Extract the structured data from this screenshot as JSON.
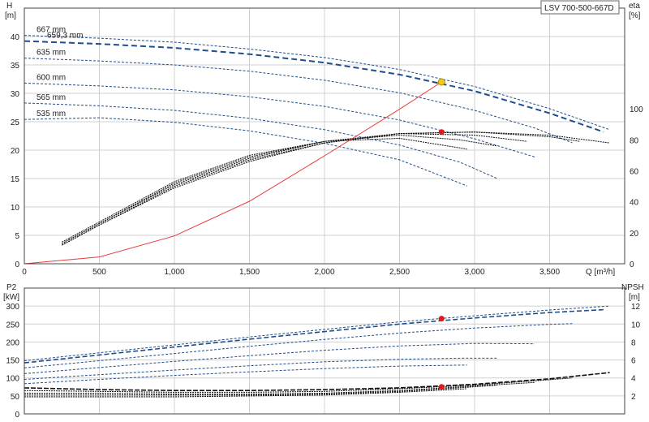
{
  "chart_data": [
    {
      "type": "line",
      "panel": "head-efficiency",
      "title": "LSV 700-500-667D",
      "xlabel": "Q [m³/h]",
      "ylabel_left": "H",
      "ylabel_left_unit": "[m]",
      "ylabel_right": "eta",
      "ylabel_right_unit": "[%]",
      "xlim": [
        0,
        4000
      ],
      "ylim_left": [
        0,
        45
      ],
      "ylim_right": [
        0,
        165
      ],
      "x_ticks": [
        0,
        500,
        1000,
        1500,
        2000,
        2500,
        3000,
        3500
      ],
      "x_tick_labels": [
        "0",
        "500",
        "1,000",
        "1,500",
        "2,000",
        "2,500",
        "3,000",
        "3,500"
      ],
      "y_left_ticks": [
        0,
        5,
        10,
        15,
        20,
        25,
        30,
        35,
        40
      ],
      "y_right_ticks": [
        0,
        20,
        40,
        60,
        80,
        100
      ],
      "grid": true,
      "head_curves": [
        {
          "name": "667 mm",
          "q": [
            0,
            500,
            1000,
            1500,
            2000,
            2500,
            3000,
            3500,
            3900
          ],
          "h": [
            40.2,
            39.7,
            39.0,
            37.8,
            36.3,
            34.2,
            31.2,
            27.3,
            23.6
          ]
        },
        {
          "name": "659,3 mm",
          "q": [
            0,
            500,
            1000,
            1500,
            2000,
            2500,
            3000,
            3500,
            3860
          ],
          "h": [
            39.2,
            38.7,
            38.0,
            36.9,
            35.4,
            33.3,
            30.4,
            26.5,
            23.2
          ]
        },
        {
          "name": "635 mm",
          "q": [
            0,
            500,
            1000,
            1500,
            2000,
            2500,
            3000,
            3400,
            3650
          ],
          "h": [
            36.2,
            35.7,
            35.0,
            33.9,
            32.3,
            30.1,
            27.0,
            23.9,
            21.3
          ]
        },
        {
          "name": "600 mm",
          "q": [
            0,
            500,
            1000,
            1500,
            2000,
            2500,
            3000,
            3400
          ],
          "h": [
            31.8,
            31.3,
            30.6,
            29.4,
            27.7,
            25.3,
            22.0,
            18.8
          ]
        },
        {
          "name": "565 mm",
          "q": [
            0,
            500,
            1000,
            1500,
            2000,
            2500,
            2900,
            3150
          ],
          "h": [
            28.3,
            27.8,
            27.0,
            25.6,
            23.6,
            20.9,
            17.9,
            15.0
          ]
        },
        {
          "name": "535 mm",
          "q": [
            0,
            500,
            1000,
            1500,
            2000,
            2500,
            2950
          ],
          "h": [
            25.4,
            25.7,
            24.9,
            23.4,
            21.2,
            18.3,
            13.7
          ]
        }
      ],
      "efficiency_curves": [
        {
          "name": "667 mm",
          "q": [
            250,
            500,
            1000,
            1500,
            2000,
            2500,
            3000,
            3500,
            3900
          ],
          "eta": [
            12,
            25,
            49,
            66,
            78,
            84,
            85,
            83,
            78
          ]
        },
        {
          "name": "635 mm",
          "q": [
            250,
            500,
            1000,
            1500,
            2000,
            2500,
            3000,
            3500,
            3700
          ],
          "eta": [
            12,
            25,
            50,
            67,
            78,
            84,
            85,
            82,
            79
          ]
        },
        {
          "name": "600 mm",
          "q": [
            250,
            500,
            1000,
            1500,
            2000,
            2500,
            3000,
            3350
          ],
          "eta": [
            13,
            26,
            51,
            68,
            79,
            84,
            83,
            79
          ]
        },
        {
          "name": "565 mm",
          "q": [
            250,
            500,
            1000,
            1500,
            2000,
            2500,
            2900,
            3150
          ],
          "eta": [
            13,
            26,
            52,
            69,
            79,
            83,
            80,
            76
          ]
        },
        {
          "name": "535 mm",
          "q": [
            250,
            500,
            1000,
            1500,
            2000,
            2500,
            2950
          ],
          "eta": [
            14,
            27,
            53,
            70,
            79,
            81,
            74
          ]
        }
      ],
      "system_curve": {
        "q": [
          0,
          500,
          1000,
          1500,
          2000,
          2500,
          2780
        ],
        "h": [
          0,
          1.2,
          4.9,
          11.0,
          19.0,
          27.2,
          32.0
        ]
      },
      "duty_point": {
        "q": 2780,
        "h": 32.0
      },
      "efficiency_point": {
        "q": 2780,
        "eta": 85
      }
    },
    {
      "type": "line",
      "panel": "power-npsh",
      "xlabel": "",
      "ylabel_left": "P2",
      "ylabel_left_unit": "[kW]",
      "ylabel_right": "NPSH",
      "ylabel_right_unit": "[m]",
      "xlim": [
        0,
        4000
      ],
      "ylim_left": [
        0,
        350
      ],
      "ylim_right": [
        0,
        14
      ],
      "y_left_ticks": [
        0,
        50,
        100,
        150,
        200,
        250,
        300
      ],
      "y_right_ticks": [
        2,
        4,
        6,
        8,
        10,
        12
      ],
      "grid": true,
      "power_curves": [
        {
          "name": "667 mm",
          "q": [
            0,
            500,
            1000,
            1500,
            2000,
            2500,
            3000,
            3500,
            3900
          ],
          "p": [
            148,
            170,
            192,
            214,
            235,
            256,
            273,
            289,
            300
          ]
        },
        {
          "name": "659,3 mm",
          "q": [
            0,
            500,
            1000,
            1500,
            2000,
            2500,
            3000,
            3500,
            3860
          ],
          "p": [
            142,
            164,
            186,
            208,
            229,
            250,
            267,
            282,
            290
          ]
        },
        {
          "name": "635 mm",
          "q": [
            0,
            500,
            1000,
            1500,
            2000,
            2500,
            3000,
            3500,
            3650
          ],
          "p": [
            128,
            148,
            168,
            188,
            207,
            225,
            239,
            249,
            251
          ]
        },
        {
          "name": "600 mm",
          "q": [
            0,
            500,
            1000,
            1500,
            2000,
            2500,
            3000,
            3400
          ],
          "p": [
            112,
            129,
            146,
            162,
            177,
            189,
            196,
            195
          ]
        },
        {
          "name": "565 mm",
          "q": [
            0,
            500,
            1000,
            1500,
            2000,
            2500,
            2900,
            3150
          ],
          "p": [
            96,
            109,
            122,
            134,
            145,
            152,
            155,
            155
          ]
        },
        {
          "name": "535 mm",
          "q": [
            0,
            500,
            1000,
            1500,
            2000,
            2500,
            2950
          ],
          "p": [
            84,
            96,
            107,
            117,
            126,
            133,
            136
          ]
        }
      ],
      "npsh_curves": [
        {
          "name": "667 mm",
          "q": [
            0,
            500,
            1000,
            1500,
            2000,
            2500,
            3000,
            3500,
            3900
          ],
          "npsh": [
            2.9,
            2.7,
            2.6,
            2.6,
            2.7,
            2.9,
            3.3,
            3.9,
            4.6
          ]
        },
        {
          "name": "635 mm",
          "q": [
            0,
            500,
            1000,
            1500,
            2000,
            2500,
            3000,
            3500,
            3650
          ],
          "npsh": [
            2.6,
            2.5,
            2.4,
            2.4,
            2.5,
            2.8,
            3.2,
            3.8,
            4.0
          ]
        },
        {
          "name": "600 mm",
          "q": [
            0,
            500,
            1000,
            1500,
            2000,
            2500,
            3000,
            3400
          ],
          "npsh": [
            2.3,
            2.3,
            2.2,
            2.2,
            2.3,
            2.6,
            3.1,
            3.5
          ]
        },
        {
          "name": "565 mm",
          "q": [
            0,
            500,
            1000,
            1500,
            2000,
            2500,
            2900,
            3150
          ],
          "npsh": [
            2.1,
            2.1,
            2.1,
            2.1,
            2.2,
            2.5,
            2.9,
            3.2
          ]
        },
        {
          "name": "535 mm",
          "q": [
            0,
            500,
            1000,
            1500,
            2000,
            2500,
            2950
          ],
          "npsh": [
            1.9,
            1.9,
            1.9,
            2.0,
            2.1,
            2.4,
            2.8
          ]
        }
      ],
      "power_point": {
        "q": 2780,
        "p": 265
      },
      "npsh_point": {
        "q": 2780,
        "npsh": 3.0
      }
    }
  ],
  "colors": {
    "curve_blue": "#1f4e8c",
    "curve_dark": "#111111",
    "system_red": "#e83a3a",
    "point_red": "#e01818",
    "point_yellow": "#f7c81e",
    "grid": "#d0d0d0"
  }
}
